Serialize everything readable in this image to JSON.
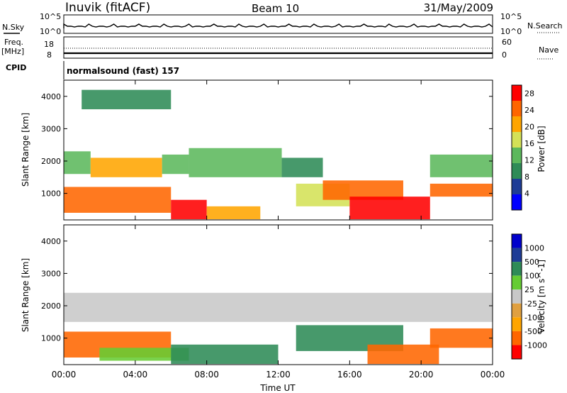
{
  "header": {
    "station": "Inuvik (fitACF)",
    "beam": "Beam 10",
    "date": "31/May/2009"
  },
  "noise_panel": {
    "left_label": "N.Sky",
    "right_label": "N.Search",
    "tick_top": "10^5",
    "tick_bottom": "10^0"
  },
  "freq_panel": {
    "left_label_1": "Freq.",
    "left_label_2": "[MHz]",
    "left_ticks": [
      "18",
      "8"
    ],
    "right_label": "Nave",
    "right_ticks": [
      "60",
      "0"
    ]
  },
  "cpid": {
    "label": "CPID",
    "text": "normalsound (fast) 157"
  },
  "colors": {
    "power_scale": [
      "#0000ff",
      "#1e3c96",
      "#2e8b57",
      "#5cb85c",
      "#d4e157",
      "#ffa500",
      "#ff6600",
      "#ff0000"
    ],
    "velocity_scale": [
      "#ff0000",
      "#ff6600",
      "#ffa500",
      "#e0a040",
      "#c8c8c8",
      "#66cc33",
      "#2e8b57",
      "#1e3c96",
      "#0000cc"
    ]
  },
  "chart_data": [
    {
      "type": "heatmap",
      "title": "",
      "ylabel": "Slant Range [km]",
      "xlabel": "",
      "y_ticks": [
        "1000",
        "2000",
        "3000",
        "4000"
      ],
      "ylim": [
        180,
        4500
      ],
      "x_ticks": [
        "00:00",
        "04:00",
        "08:00",
        "12:00",
        "16:00",
        "20:00",
        "00:00"
      ],
      "xlim": [
        0,
        24
      ],
      "colorbar": {
        "label": "Power [dB]",
        "ticks": [
          "4",
          "8",
          "12",
          "16",
          "20",
          "24",
          "28"
        ],
        "range": [
          0,
          30
        ]
      },
      "bands": [
        {
          "x": [
            0.0,
            1.5
          ],
          "range_km": [
            1600,
            2300
          ],
          "power": 12
        },
        {
          "x": [
            1.5,
            5.5
          ],
          "range_km": [
            1500,
            2100
          ],
          "power": 20
        },
        {
          "x": [
            5.5,
            7.0
          ],
          "range_km": [
            1600,
            2200
          ],
          "power": 12
        },
        {
          "x": [
            7.0,
            12.2
          ],
          "range_km": [
            1500,
            2400
          ],
          "power": 12
        },
        {
          "x": [
            12.2,
            14.5
          ],
          "range_km": [
            1500,
            2100
          ],
          "power": 8
        },
        {
          "x": [
            20.5,
            24.0
          ],
          "range_km": [
            1500,
            2200
          ],
          "power": 12
        },
        {
          "x": [
            0.0,
            6.0
          ],
          "range_km": [
            400,
            1200
          ],
          "power": 24
        },
        {
          "x": [
            6.0,
            8.0
          ],
          "range_km": [
            200,
            800
          ],
          "power": 28
        },
        {
          "x": [
            8.0,
            11.0
          ],
          "range_km": [
            200,
            600
          ],
          "power": 20
        },
        {
          "x": [
            13.0,
            16.0
          ],
          "range_km": [
            600,
            1300
          ],
          "power": 16
        },
        {
          "x": [
            14.5,
            19.0
          ],
          "range_km": [
            800,
            1400
          ],
          "power": 26
        },
        {
          "x": [
            16.0,
            20.5
          ],
          "range_km": [
            200,
            900
          ],
          "power": 28
        },
        {
          "x": [
            20.5,
            24.0
          ],
          "range_km": [
            900,
            1300
          ],
          "power": 24
        },
        {
          "x": [
            1.0,
            6.0
          ],
          "range_km": [
            3600,
            4200
          ],
          "power": 8
        }
      ]
    },
    {
      "type": "heatmap",
      "title": "",
      "ylabel": "Slant Range [km]",
      "xlabel": "Time UT",
      "y_ticks": [
        "1000",
        "2000",
        "3000",
        "4000"
      ],
      "ylim": [
        180,
        4500
      ],
      "x_ticks": [
        "00:00",
        "04:00",
        "08:00",
        "12:00",
        "16:00",
        "20:00",
        "00:00"
      ],
      "xlim": [
        0,
        24
      ],
      "colorbar": {
        "label": "Velocity [m s^-1]",
        "ticks": [
          "1000",
          "500",
          "100",
          "25",
          "-25",
          "-100",
          "-500",
          "-1000"
        ]
      },
      "bands": [
        {
          "x": [
            0.0,
            24.0
          ],
          "range_km": [
            1500,
            2400
          ],
          "velocity": 0
        },
        {
          "x": [
            0.0,
            6.0
          ],
          "range_km": [
            400,
            1200
          ],
          "velocity": -150
        },
        {
          "x": [
            2.0,
            7.0
          ],
          "range_km": [
            300,
            700
          ],
          "velocity": 50
        },
        {
          "x": [
            6.0,
            12.0
          ],
          "range_km": [
            200,
            800
          ],
          "velocity": 300
        },
        {
          "x": [
            13.0,
            19.0
          ],
          "range_km": [
            600,
            1400
          ],
          "velocity": 300
        },
        {
          "x": [
            17.0,
            21.0
          ],
          "range_km": [
            200,
            800
          ],
          "velocity": -300
        },
        {
          "x": [
            20.5,
            24.0
          ],
          "range_km": [
            700,
            1300
          ],
          "velocity": -150
        }
      ]
    }
  ]
}
